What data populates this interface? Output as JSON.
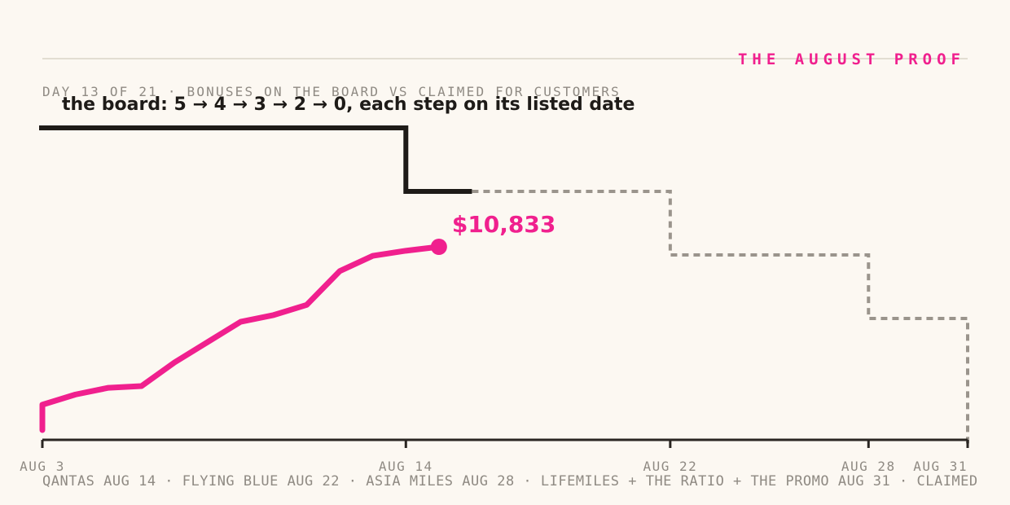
{
  "header": {
    "kicker": "THE AUGUST PROOF",
    "subtitle": "DAY 13 OF 21 · BONUSES ON THE BOARD VS CLAIMED FOR CUSTOMERS",
    "annotation": "the board: 5 → 4 → 3 → 2 → 0, each step on its listed date"
  },
  "footnote": "QANTAS AUG 14 · FLYING BLUE AUG 22 · ASIA MILES AUG 28 · LIFEMILES + THE RATIO + THE PROMO AUG 31 · CLAIMED",
  "colors": {
    "board": "#1e1b18",
    "board_future": "#9a948c",
    "claimed": "#f0208e",
    "axis": "#2a2622",
    "rule": "#e2ddd2"
  },
  "chart_data": {
    "type": "line",
    "x_axis": {
      "range": [
        "Aug 3",
        "Aug 31"
      ],
      "ticks": [
        "Aug 3",
        "Aug 14",
        "Aug 22",
        "Aug 28",
        "Aug 31"
      ],
      "tick_labels": [
        "AUG 3",
        "AUG 14",
        "AUG 22",
        "AUG 28",
        "AUG 31"
      ]
    },
    "grid": false,
    "series": [
      {
        "kind": "board",
        "points": [
          {
            "date": "Aug 3",
            "value": 5
          },
          {
            "date": "Aug 14",
            "value": 4
          },
          {
            "date": "Aug 22",
            "value": 3
          },
          {
            "date": "Aug 28",
            "value": 2
          },
          {
            "date": "Aug 31",
            "value": 0
          }
        ],
        "solid_through": "Aug 16"
      },
      {
        "kind": "claimed",
        "unit": "$",
        "points": [
          {
            "date": "Aug 3",
            "value": 0
          },
          {
            "date": "Aug 3",
            "value": 1500
          },
          {
            "date": "Aug 4",
            "value": 2100
          },
          {
            "date": "Aug 5",
            "value": 2500
          },
          {
            "date": "Aug 6",
            "value": 2600
          },
          {
            "date": "Aug 7",
            "value": 4000
          },
          {
            "date": "Aug 8",
            "value": 5200
          },
          {
            "date": "Aug 9",
            "value": 6400
          },
          {
            "date": "Aug 10",
            "value": 6800
          },
          {
            "date": "Aug 11",
            "value": 7400
          },
          {
            "date": "Aug 12",
            "value": 9400
          },
          {
            "date": "Aug 13",
            "value": 10300
          },
          {
            "date": "Aug 14",
            "value": 10600
          },
          {
            "date": "Aug 15",
            "value": 10833
          }
        ],
        "end_label": "$10,833"
      }
    ]
  }
}
